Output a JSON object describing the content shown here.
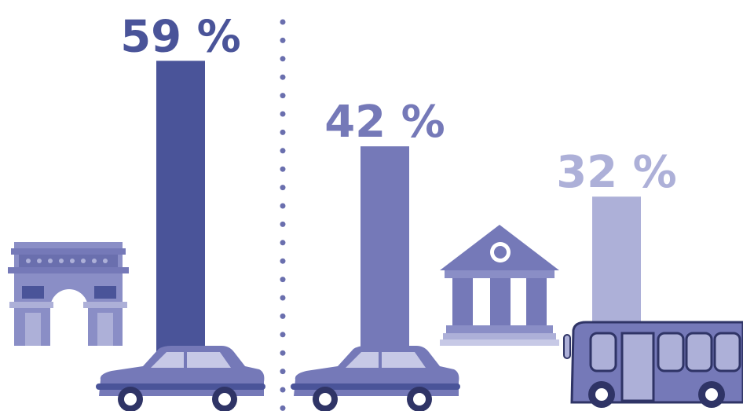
{
  "chart_data": {
    "type": "bar",
    "values": [
      59,
      42,
      32
    ],
    "value_labels": [
      "59 %",
      "42 %",
      "32 %"
    ],
    "colors": [
      "#4a5499",
      "#7579b8",
      "#adb0d8"
    ]
  }
}
